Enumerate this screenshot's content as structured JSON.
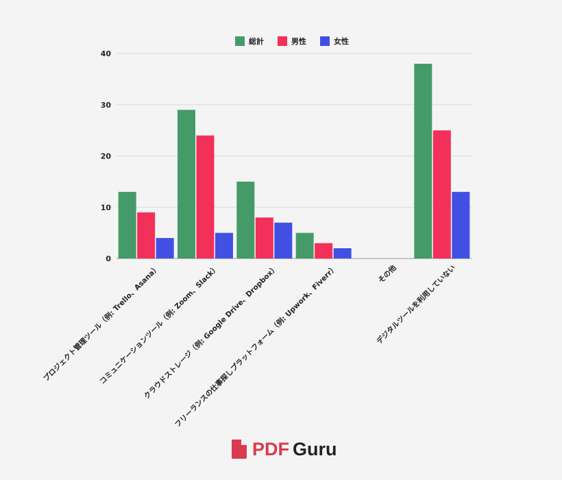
{
  "chart_data": {
    "type": "bar",
    "categories": [
      "プロジェクト管理ツール（例: Trello、Asana）",
      "コミュニケーションツール（例: Zoom、Slack）",
      "クラウドストレージ（例: Google Drive、Dropbox）",
      "フリーランスの仕事探しプラットフォーム（例: Upwork、Fiverr）",
      "その他",
      "デジタルツールを利用していない"
    ],
    "series": [
      {
        "name": "総計",
        "color": "#449b69",
        "values": [
          13,
          29,
          15,
          5,
          0,
          38
        ]
      },
      {
        "name": "男性",
        "color": "#f2305a",
        "values": [
          9,
          24,
          8,
          3,
          0,
          25
        ]
      },
      {
        "name": "女性",
        "color": "#4150e3",
        "values": [
          4,
          5,
          7,
          2,
          0,
          13
        ]
      }
    ],
    "yticks": [
      0,
      10,
      20,
      30,
      40
    ],
    "ylim": [
      0,
      40
    ],
    "grid": true,
    "legend_position": "top-center"
  },
  "brand": {
    "logo_part1": "PDF",
    "logo_part2": "Guru",
    "logo_color": "#d93a4f"
  }
}
